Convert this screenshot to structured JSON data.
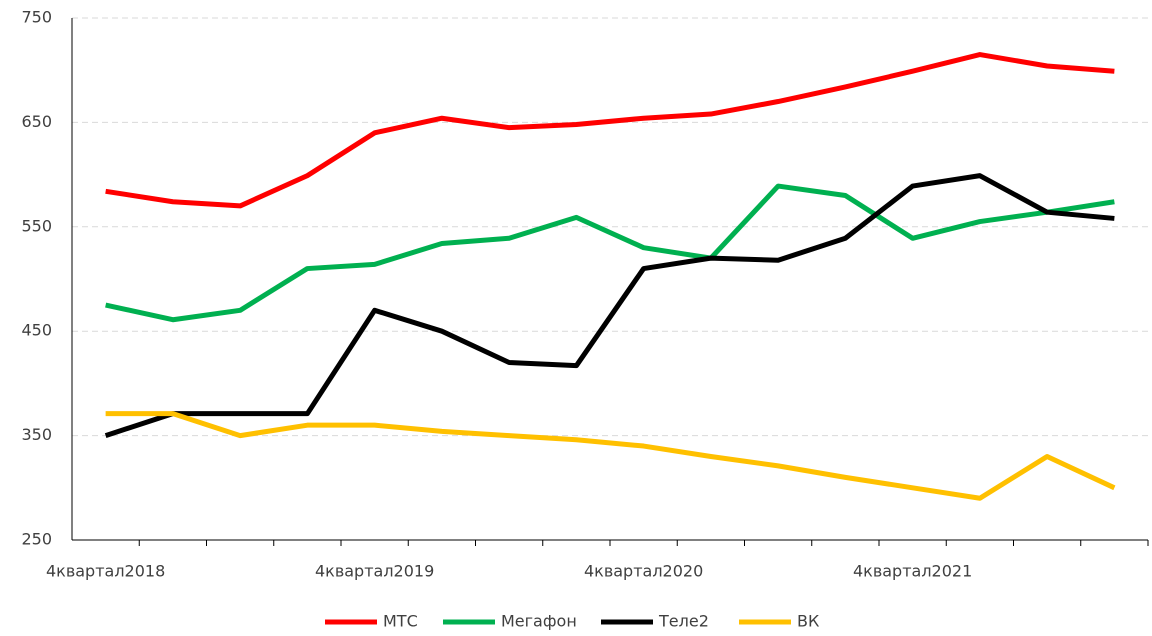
{
  "chart_data": {
    "type": "line",
    "categories": [
      "4квартал2018",
      null,
      null,
      null,
      "4квартал2019",
      null,
      null,
      null,
      "4квартал2020",
      null,
      null,
      null,
      "4квартал2021",
      null,
      null,
      null
    ],
    "series": [
      {
        "name": "МТС",
        "color": "#ff0000",
        "values": [
          584,
          574,
          570,
          599,
          640,
          654,
          645,
          648,
          654,
          658,
          670,
          684,
          699,
          715,
          704,
          699
        ]
      },
      {
        "name": "Мегафон",
        "color": "#00b050",
        "values": [
          475,
          461,
          470,
          510,
          514,
          534,
          539,
          559,
          530,
          520,
          589,
          580,
          539,
          555,
          564,
          574
        ]
      },
      {
        "name": "Теле2",
        "color": "#000000",
        "values": [
          350,
          371,
          371,
          371,
          470,
          450,
          420,
          417,
          510,
          520,
          518,
          539,
          589,
          599,
          564,
          558
        ]
      },
      {
        "name": "ВК",
        "color": "#ffc000",
        "values": [
          371,
          371,
          350,
          360,
          360,
          354,
          350,
          346,
          340,
          330,
          321,
          310,
          300,
          290,
          330,
          300
        ]
      }
    ],
    "ylim": [
      250,
      750
    ],
    "yticks": [
      250,
      350,
      450,
      550,
      650,
      750
    ],
    "grid": true,
    "legend": "bottom"
  }
}
